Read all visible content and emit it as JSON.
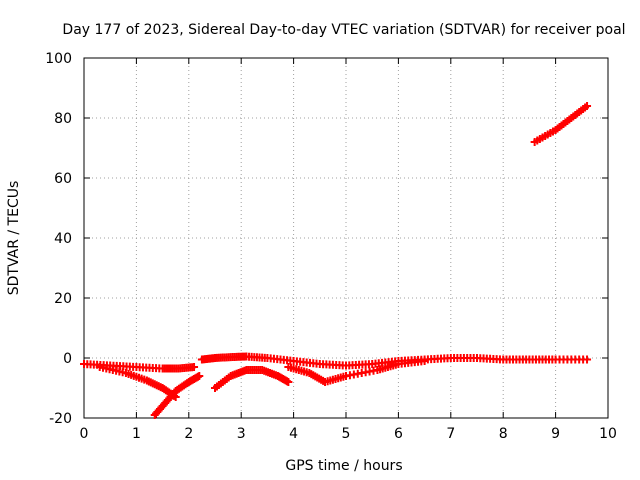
{
  "chart_data": {
    "type": "scatter",
    "title": "Day 177 of 2023, Sidereal Day-to-day VTEC variation (SDTVAR) for receiver poal",
    "xlabel": "GPS time / hours",
    "ylabel": "SDTVAR / TECUs",
    "xlim": [
      0,
      10
    ],
    "ylim": [
      -20,
      100
    ],
    "xticks": [
      0,
      1,
      2,
      3,
      4,
      5,
      6,
      7,
      8,
      9,
      10
    ],
    "yticks": [
      -20,
      0,
      20,
      40,
      60,
      80,
      100
    ],
    "grid": true,
    "legend": "none",
    "marker_color": "#ff0000",
    "series": [
      {
        "x": [
          0,
          0.5,
          1.0,
          1.5,
          1.8,
          2.1
        ],
        "y": [
          -2,
          -2.5,
          -3,
          -3.5,
          -3.5,
          -3
        ]
      },
      {
        "x": [
          0.3,
          0.8,
          1.2,
          1.5,
          1.75
        ],
        "y": [
          -3,
          -5,
          -7.5,
          -10,
          -13
        ]
      },
      {
        "x": [
          1.35,
          1.55,
          1.75,
          2.0,
          2.2
        ],
        "y": [
          -19,
          -15,
          -11,
          -8,
          -6
        ]
      },
      {
        "x": [
          2.25,
          2.5,
          2.8,
          3.1,
          3.5,
          4.0,
          4.5,
          5.0,
          5.5,
          6.0,
          6.5,
          7.0,
          7.5,
          8.0,
          8.5,
          9.0,
          9.6
        ],
        "y": [
          -0.5,
          0,
          0.3,
          0.5,
          0,
          -1,
          -2,
          -2.5,
          -2,
          -1,
          -0.5,
          0,
          0,
          -0.5,
          -0.5,
          -0.5,
          -0.5
        ]
      },
      {
        "x": [
          2.5,
          2.8,
          3.1,
          3.4,
          3.7,
          3.9
        ],
        "y": [
          -10,
          -6,
          -4,
          -4,
          -6,
          -8
        ]
      },
      {
        "x": [
          3.9,
          4.3,
          4.6,
          5.0,
          5.6,
          6.0,
          6.5
        ],
        "y": [
          -3,
          -5,
          -8,
          -6,
          -4,
          -2,
          -1
        ]
      },
      {
        "x": [
          8.6,
          9.0,
          9.3,
          9.6
        ],
        "y": [
          72,
          76,
          80,
          84
        ]
      }
    ]
  }
}
